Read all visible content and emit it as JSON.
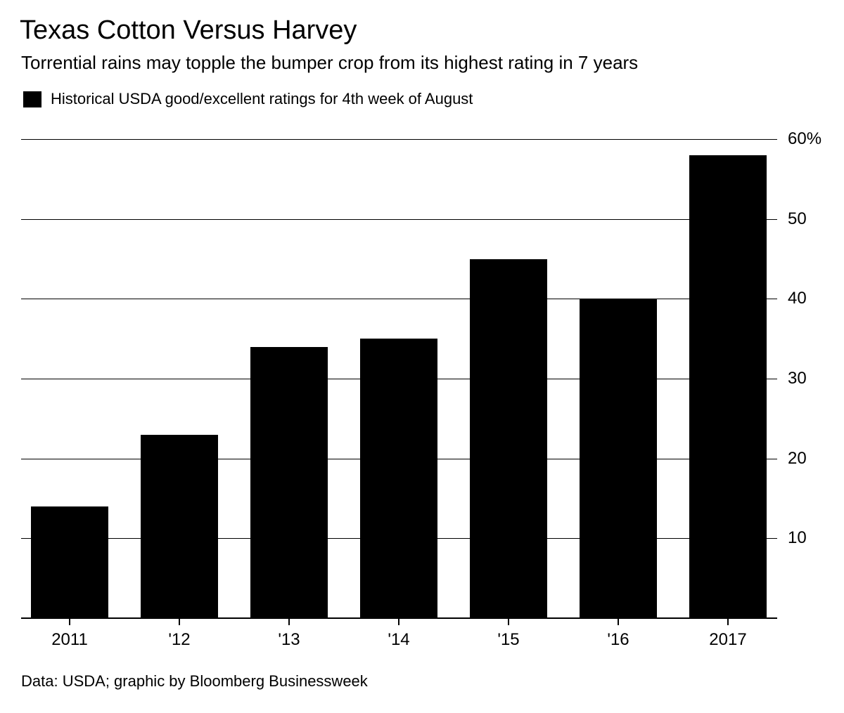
{
  "header": {
    "title": "Texas Cotton Versus Harvey",
    "subtitle": "Torrential rains may topple the bumper crop from its highest rating in 7 years"
  },
  "legend": {
    "label": "Historical USDA good/excellent ratings for 4th week of August",
    "swatch_color": "#000000"
  },
  "chart_data": {
    "type": "bar",
    "title": "Texas Cotton Versus Harvey",
    "subtitle": "Torrential rains may topple the bumper crop from its highest rating in 7 years",
    "series_label": "Historical USDA good/excellent ratings for 4th week of August",
    "categories": [
      "2011",
      "'12",
      "'13",
      "'14",
      "'15",
      "'16",
      "2017"
    ],
    "values": [
      14,
      23,
      34,
      35,
      45,
      40,
      58
    ],
    "unit": "%",
    "xlabel": "",
    "ylabel": "",
    "ylim": [
      0,
      60
    ],
    "y_ticks": [
      10,
      20,
      30,
      40,
      50,
      60
    ],
    "y_tick_labels": [
      "10",
      "20",
      "30",
      "40",
      "50",
      "60%"
    ],
    "grid": "horizontal",
    "legend_position": "top-left",
    "y_axis_side": "right",
    "bar_color": "#000000",
    "background_color": "#ffffff"
  },
  "footer": {
    "source": "Data: USDA; graphic by Bloomberg Businessweek"
  }
}
